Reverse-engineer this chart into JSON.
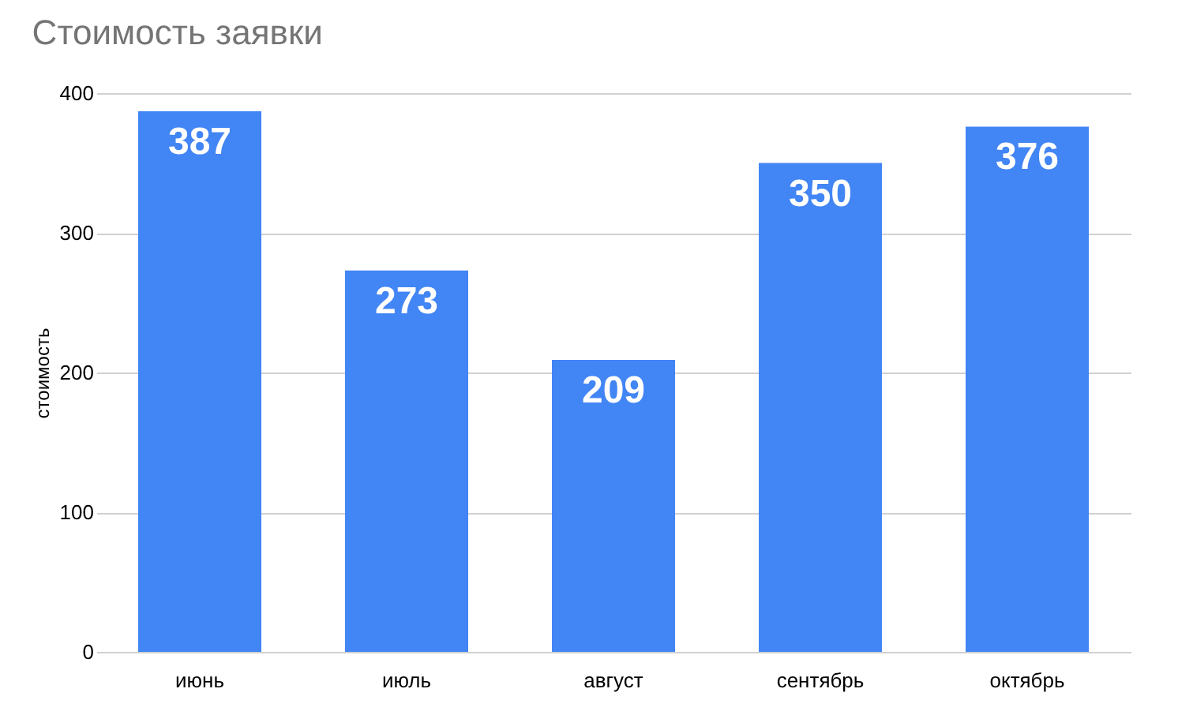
{
  "chart_data": {
    "type": "bar",
    "title": "Стоимость заявки",
    "ylabel": "стоимость",
    "categories": [
      "июнь",
      "июль",
      "август",
      "сентябрь",
      "октябрь"
    ],
    "values": [
      387,
      273,
      209,
      350,
      376
    ],
    "color": "#4285f4",
    "ylim": [
      0,
      400
    ],
    "yticks": [
      0,
      100,
      200,
      300,
      400
    ],
    "grid": "y",
    "data_labels": true
  }
}
